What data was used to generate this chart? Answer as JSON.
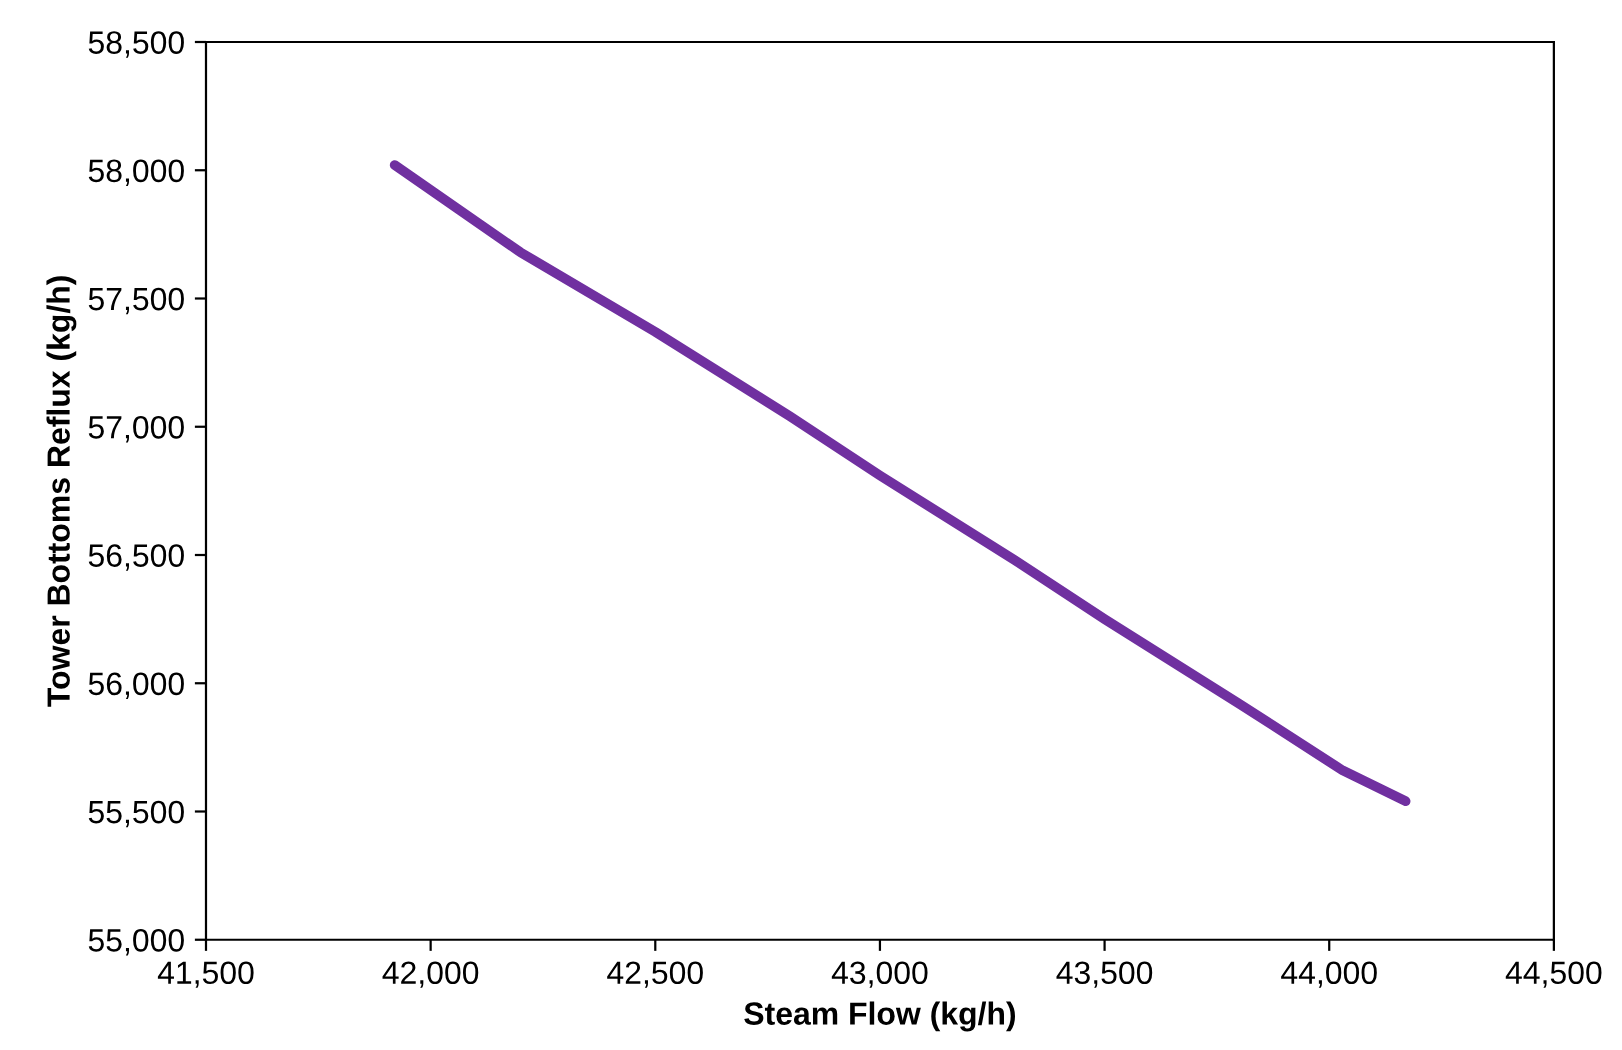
{
  "chart_data": {
    "type": "line",
    "xlabel": "Steam Flow (kg/h)",
    "ylabel": "Tower Bottoms Reflux (kg/h)",
    "series": [
      {
        "color": "#7030a0",
        "x": [
          41920,
          42200,
          42500,
          42800,
          43000,
          43300,
          43500,
          43800,
          44030,
          44170
        ],
        "values": [
          58020,
          57680,
          57370,
          57040,
          56810,
          56480,
          56250,
          55920,
          55660,
          55540
        ]
      }
    ],
    "xlim": [
      41500,
      44500
    ],
    "xticks": [
      {
        "value": 41500,
        "label": "41,500"
      },
      {
        "value": 42000,
        "label": "42,000"
      },
      {
        "value": 42500,
        "label": "42,500"
      },
      {
        "value": 43000,
        "label": "43,000"
      },
      {
        "value": 43500,
        "label": "43,500"
      },
      {
        "value": 44000,
        "label": "44,000"
      },
      {
        "value": 44500,
        "label": "44,500"
      }
    ],
    "ylim": [
      55000,
      58500
    ],
    "yticks": [
      {
        "value": 55000,
        "label": "55,000"
      },
      {
        "value": 55500,
        "label": "55,500"
      },
      {
        "value": 56000,
        "label": "56,000"
      },
      {
        "value": 56500,
        "label": "56,500"
      },
      {
        "value": 57000,
        "label": "57,000"
      },
      {
        "value": 57500,
        "label": "57,500"
      },
      {
        "value": 58000,
        "label": "58,000"
      },
      {
        "value": 58500,
        "label": "58,500"
      }
    ],
    "grid": false,
    "legend": false,
    "marker": "none",
    "line_style": "solid"
  }
}
